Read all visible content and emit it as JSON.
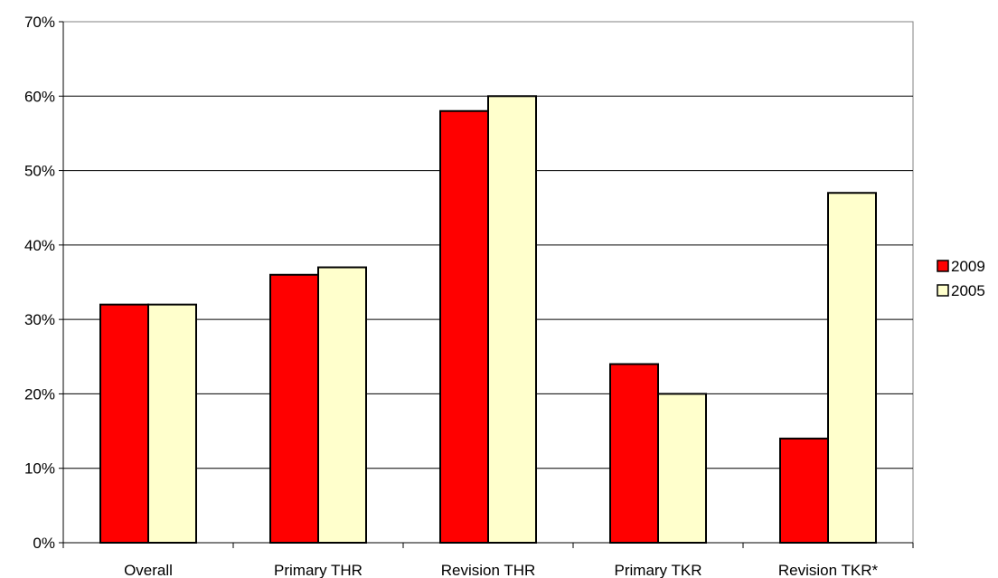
{
  "chart_data": {
    "type": "bar",
    "title": "",
    "xlabel": "",
    "ylabel": "",
    "categories": [
      "Overall",
      "Primary THR",
      "Revision THR",
      "Primary TKR",
      "Revision TKR*"
    ],
    "series": [
      {
        "name": "2009",
        "values": [
          32,
          36,
          58,
          24,
          14
        ],
        "color": "#FF0000"
      },
      {
        "name": "2005",
        "values": [
          32,
          37,
          60,
          20,
          47
        ],
        "color": "#FFFFCC"
      }
    ],
    "ylim": [
      0,
      70
    ],
    "yticks": [
      0,
      10,
      20,
      30,
      40,
      50,
      60,
      70
    ],
    "ytick_labels": [
      "0%",
      "10%",
      "20%",
      "30%",
      "40%",
      "50%",
      "60%",
      "70%"
    ],
    "grid": true,
    "legend": "right"
  }
}
